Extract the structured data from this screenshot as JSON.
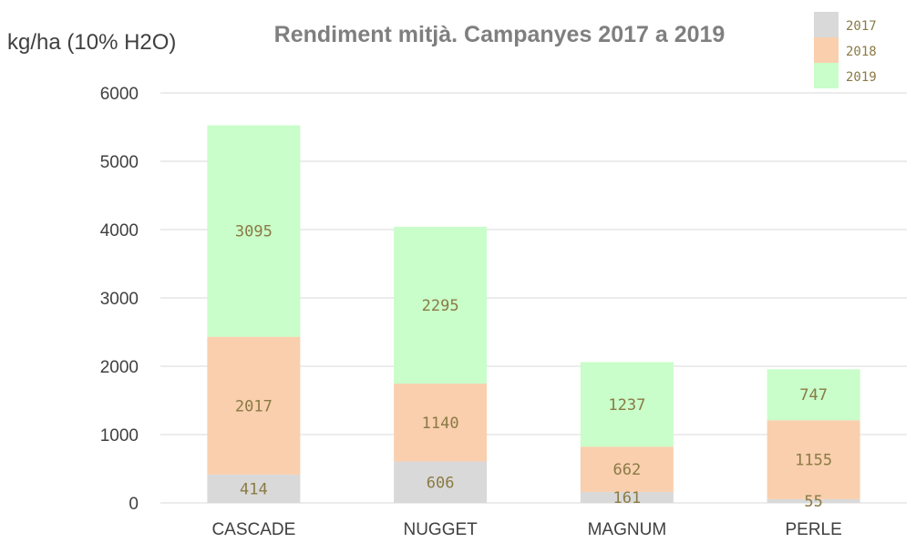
{
  "chart_data": {
    "type": "bar",
    "stacked": true,
    "title": "Rendiment mitjà. Campanyes 2017 a 2019",
    "ylabel": "kg/ha (10% H2O)",
    "xlabel": "",
    "ylim": [
      0,
      6000
    ],
    "yticks": [
      "0",
      "1000",
      "2000",
      "3000",
      "4000",
      "5000",
      "6000"
    ],
    "grid": true,
    "legend_position": "top-right",
    "categories": [
      "CASCADE",
      "NUGGET",
      "MAGNUM",
      "PERLE"
    ],
    "series": [
      {
        "name": "2017",
        "color": "#d9d9d9",
        "values": [
          414,
          606,
          161,
          55
        ],
        "labels": [
          "414",
          "606",
          "161",
          "55"
        ]
      },
      {
        "name": "2018",
        "color": "#f9cfae",
        "values": [
          2017,
          1140,
          662,
          1155
        ],
        "labels": [
          "2017",
          "1140",
          "662",
          "1155"
        ]
      },
      {
        "name": "2019",
        "color": "#c9fdc9",
        "values": [
          3095,
          2295,
          1237,
          747
        ],
        "labels": [
          "3095",
          "2295",
          "1237",
          "747"
        ]
      }
    ]
  }
}
